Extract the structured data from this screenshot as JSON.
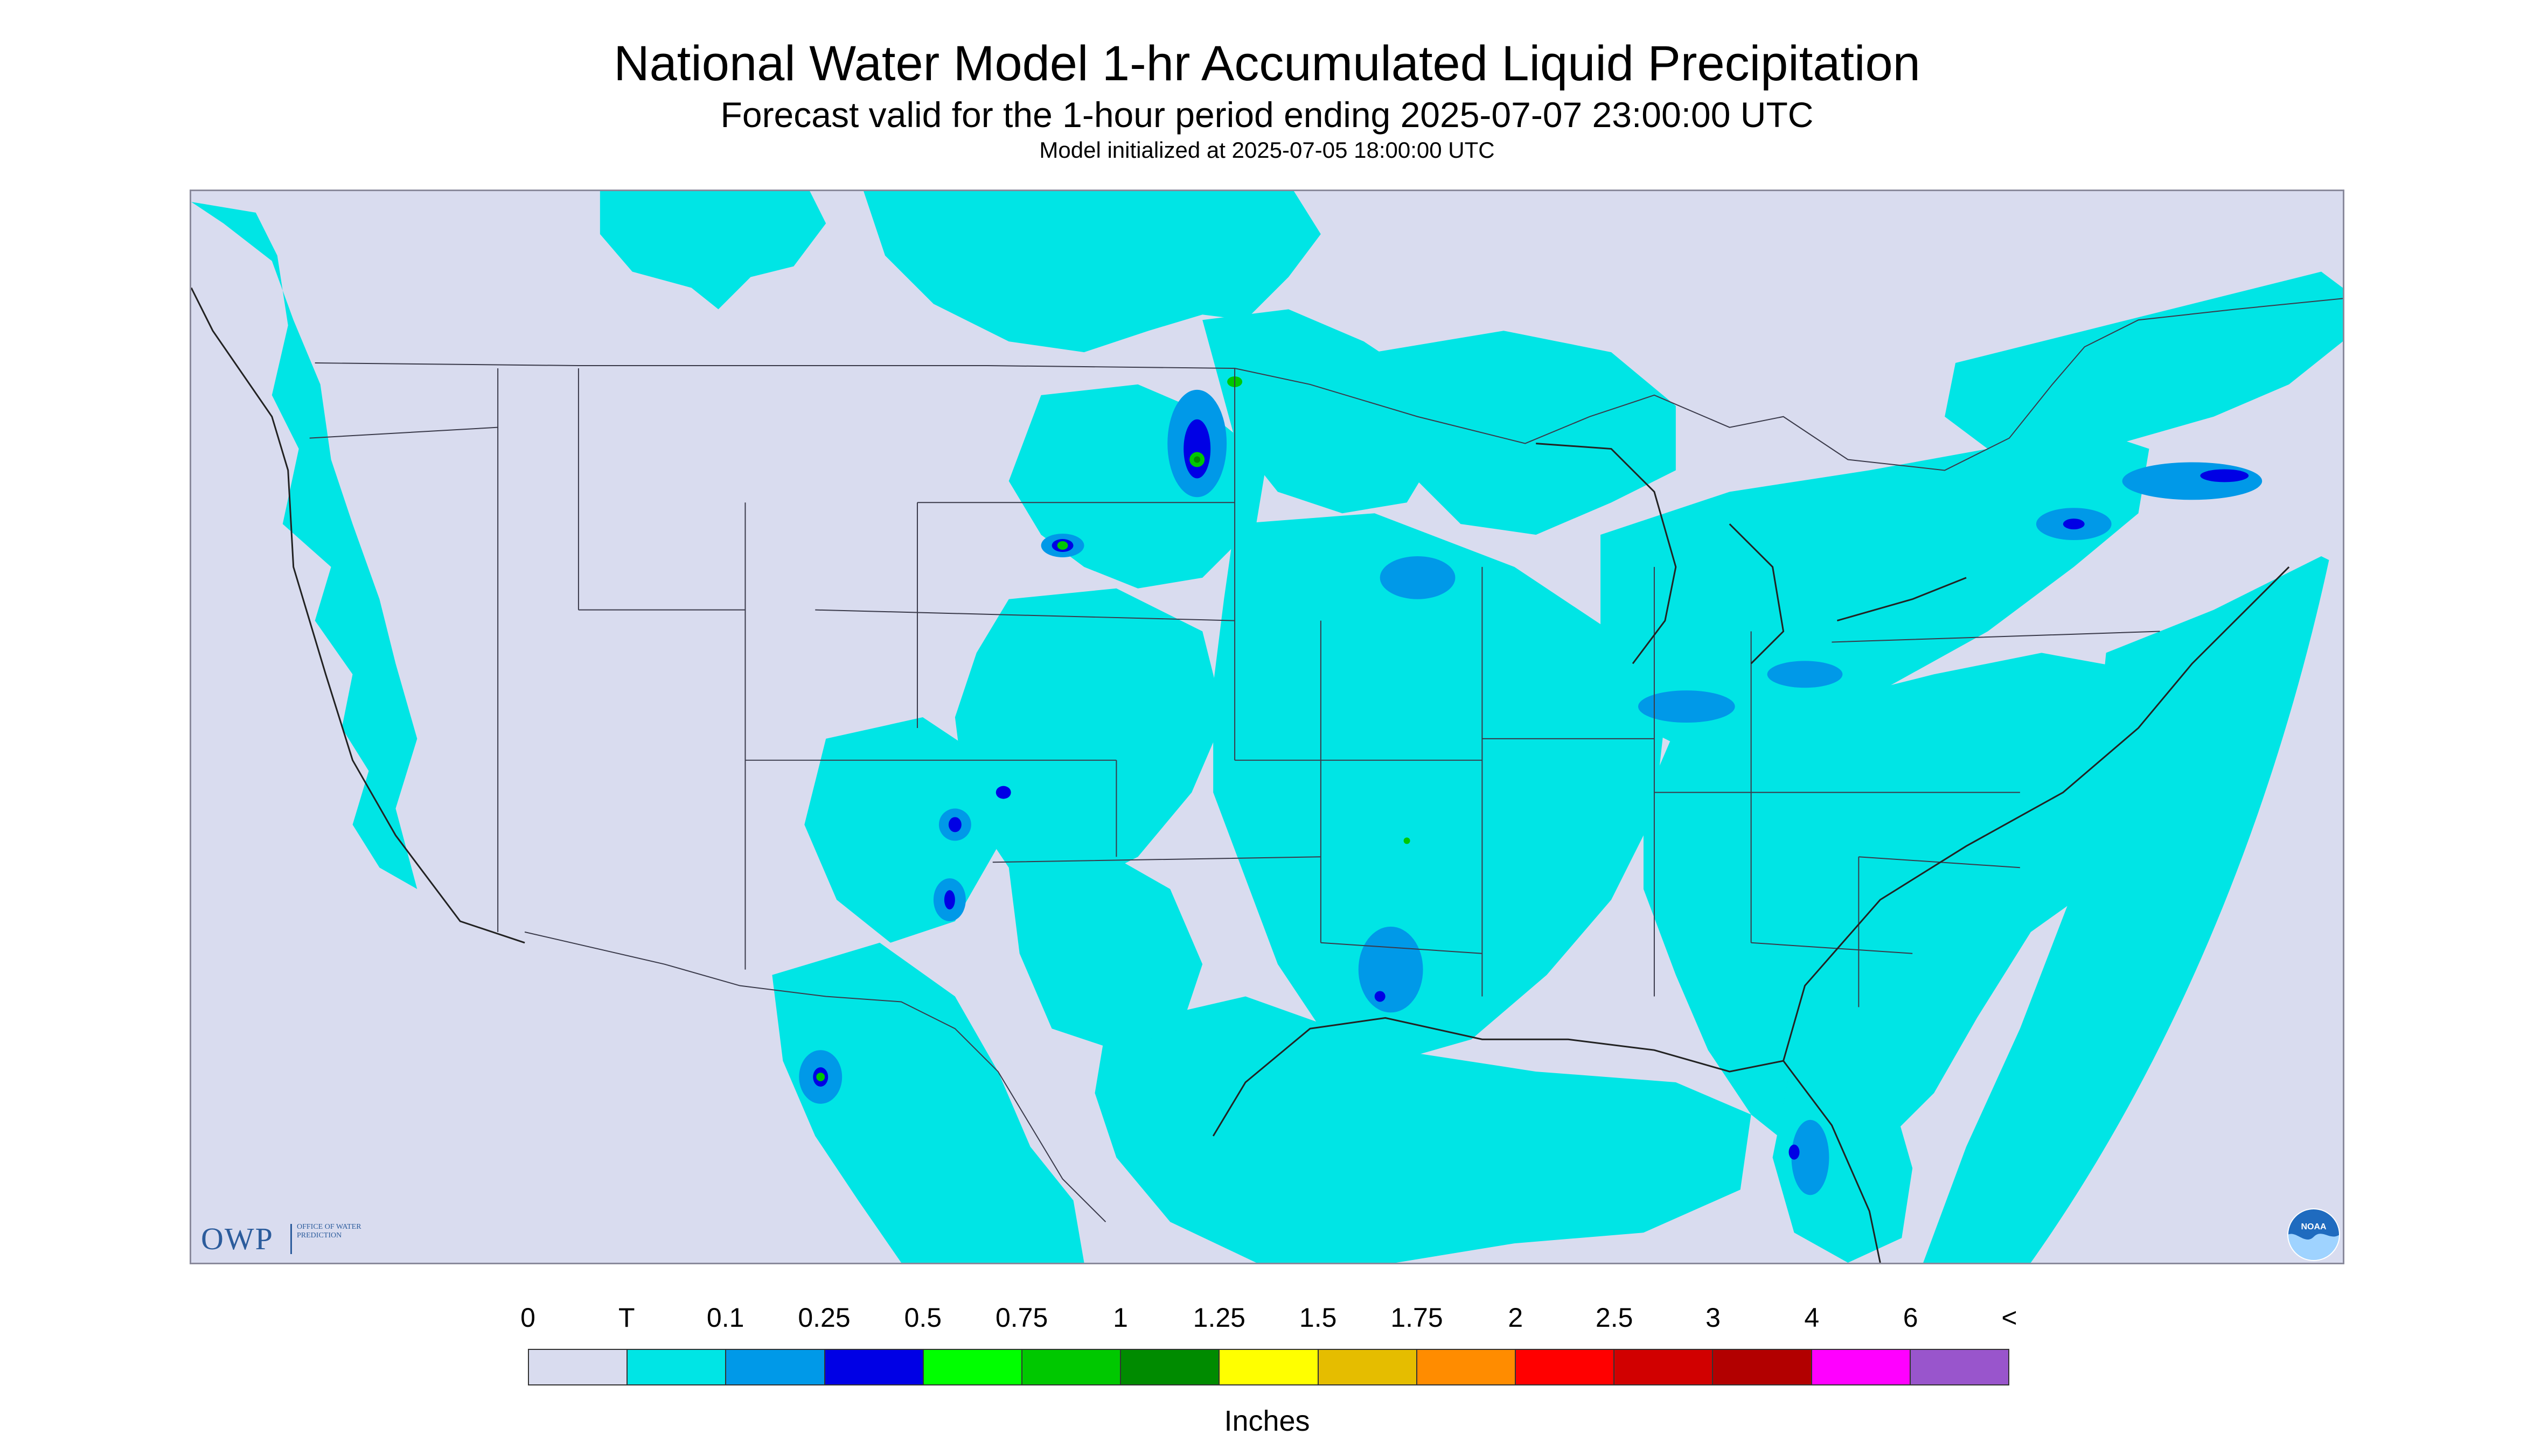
{
  "header": {
    "title": "National Water Model 1-hr Accumulated Liquid Precipitation",
    "subtitle": "Forecast valid for the 1-hour period ending 2025-07-07 23:00:00 UTC",
    "init_line": "Model initialized at 2025-07-05 18:00:00 UTC"
  },
  "logos": {
    "owp_letters": "OWP",
    "owp_text": "Office of Water Prediction",
    "noaa_text": "NOAA"
  },
  "legend": {
    "unit": "Inches",
    "ticks": [
      "0",
      "T",
      "0.1",
      "0.25",
      "0.5",
      "0.75",
      "1",
      "1.25",
      "1.5",
      "1.75",
      "2",
      "2.5",
      "3",
      "4",
      "6",
      "<"
    ],
    "colors": [
      "#d9dcef",
      "#00e5e5",
      "#0099e8",
      "#0000e5",
      "#00ff00",
      "#00c800",
      "#008b00",
      "#ffff00",
      "#e5bd00",
      "#ff8c00",
      "#ff0000",
      "#d10000",
      "#b20000",
      "#ff00ff",
      "#9955cc"
    ]
  },
  "map_colors": {
    "background": "#d9dcef",
    "outside": "#ffffff",
    "trace": "#00e5e5",
    "light": "#0099e8",
    "moderate": "#0000e5",
    "heavy": "#00c800",
    "heavier": "#008b00",
    "boundary": "#3a3a4a"
  }
}
